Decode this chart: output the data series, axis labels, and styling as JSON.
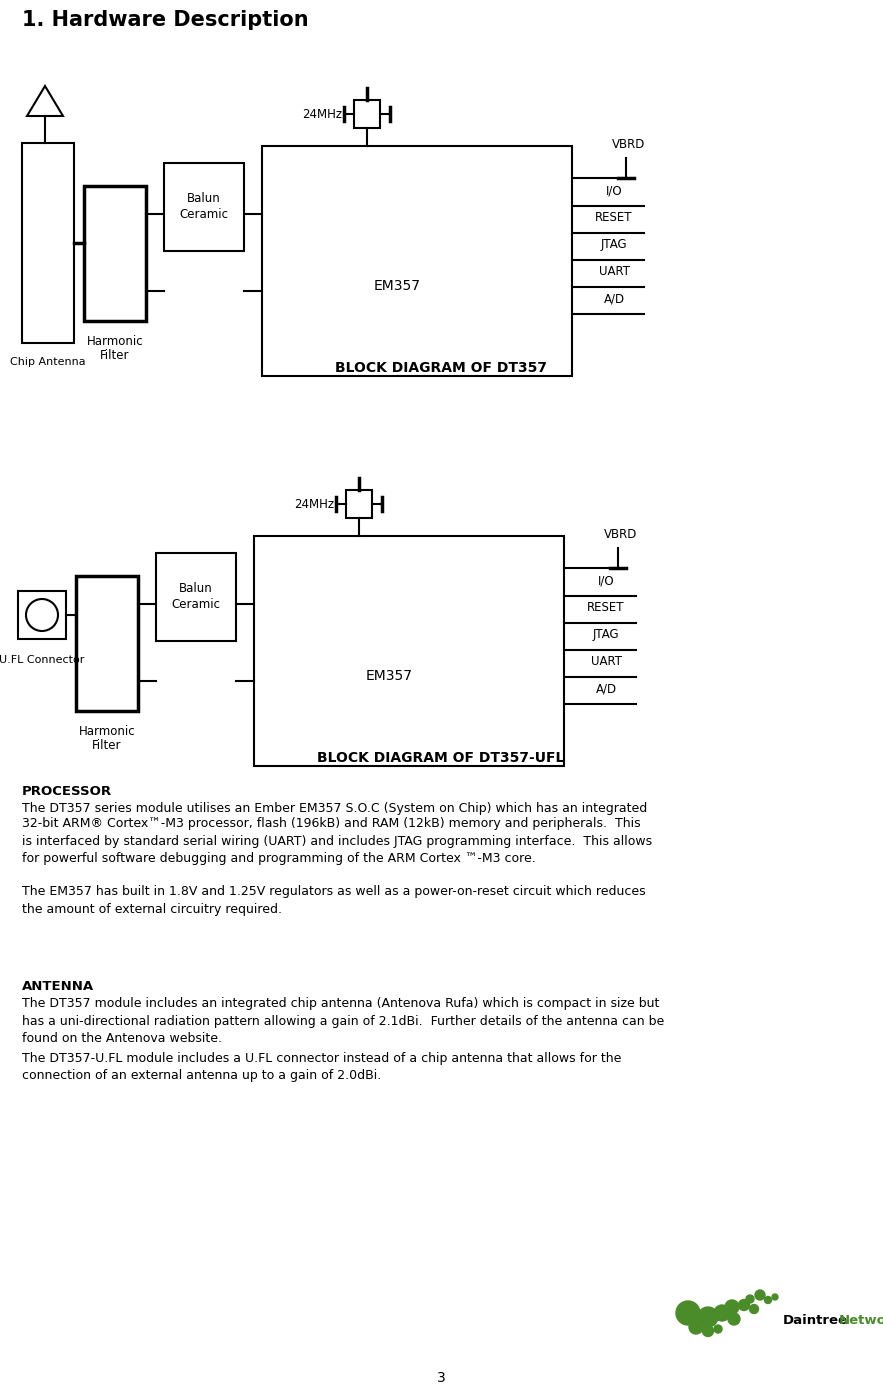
{
  "title": "1. Hardware Description",
  "diagram1_caption": "BLOCK DIAGRAM OF DT357",
  "diagram2_caption": "BLOCK DIAGRAM OF DT357-UFL",
  "section_processor": "PROCESSOR",
  "text_processor1": "The DT357 series module utilises an Ember EM357 S.O.C (System on Chip) which has an integrated",
  "text_processor2": "32-bit ARM® Cortex™-M3 processor, flash (196kB) and RAM (12kB) memory and peripherals.  This\nis interfaced by standard serial wiring (UART) and includes JTAG programming interface.  This allows\nfor powerful software debugging and programming of the ARM Cortex ™-M3 core.",
  "text_processor3": "The EM357 has built in 1.8V and 1.25V regulators as well as a power-on-reset circuit which reduces\nthe amount of external circuitry required.",
  "section_antenna": "ANTENNA",
  "text_antenna1": "The DT357 module includes an integrated chip antenna (Antenova Rufa) which is compact in size but\nhas a uni-directional radiation pattern allowing a gain of 2.1dBi.  Further details of the antenna can be\nfound on the Antenova website.",
  "text_antenna2": "The DT357-U.FL module includes a U.FL connector instead of a chip antenna that allows for the\nconnection of an external antenna up to a gain of 2.0dBi.",
  "page_number": "3",
  "bg_color": "#ffffff",
  "text_color": "#000000",
  "logo_color": "#4a8c2a"
}
